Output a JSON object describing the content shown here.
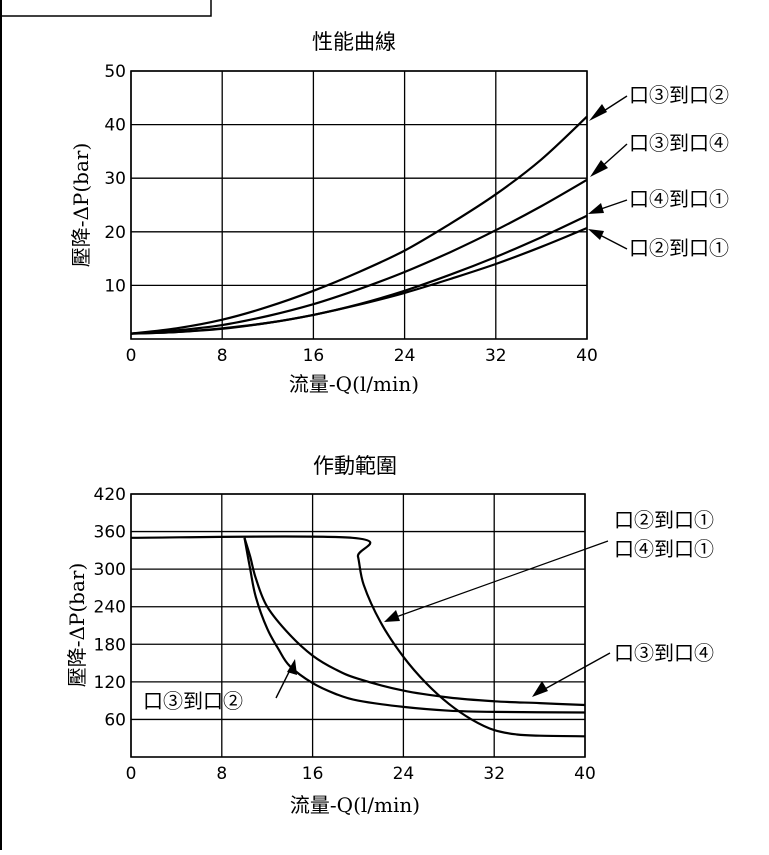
{
  "chart_data": [
    {
      "type": "line",
      "title": "性能曲線",
      "xlabel": "流量-Q(l/min)",
      "ylabel": "壓降-ΔP(bar)",
      "xlim": [
        0,
        40
      ],
      "ylim": [
        0,
        50
      ],
      "xticks": [
        0,
        8,
        16,
        24,
        32,
        40
      ],
      "yticks": [
        10,
        20,
        30,
        40,
        50
      ],
      "grid": true,
      "series": [
        {
          "name": "口③到口②",
          "x": [
            0,
            4,
            8,
            12,
            16,
            20,
            24,
            28,
            32,
            36,
            40
          ],
          "y": [
            1,
            2,
            3.6,
            6,
            9,
            12.5,
            16.5,
            21.5,
            27,
            33.5,
            41.5
          ]
        },
        {
          "name": "口③到口④",
          "x": [
            0,
            4,
            8,
            12,
            16,
            20,
            24,
            28,
            32,
            36,
            40
          ],
          "y": [
            1,
            1.6,
            2.6,
            4.3,
            6.5,
            9.3,
            12.5,
            16.2,
            20.3,
            24.8,
            29.7
          ]
        },
        {
          "name": "口④到口①",
          "x": [
            0,
            4,
            8,
            12,
            16,
            20,
            24,
            28,
            32,
            36,
            40
          ],
          "y": [
            1,
            1.3,
            2,
            3,
            4.5,
            6.5,
            9,
            12,
            15.3,
            19,
            23
          ]
        },
        {
          "name": "口②到口①",
          "x": [
            0,
            4,
            8,
            12,
            16,
            20,
            24,
            28,
            32,
            36,
            40
          ],
          "y": [
            1,
            1.3,
            1.9,
            3,
            4.5,
            6.4,
            8.6,
            11.2,
            14,
            17.2,
            20.7
          ]
        }
      ]
    },
    {
      "type": "line",
      "title": "作動範圍",
      "xlabel": "流量-Q(l/min)",
      "ylabel": "壓降-ΔP(bar)",
      "xlim": [
        0,
        40
      ],
      "ylim": [
        0,
        420
      ],
      "xticks": [
        0,
        8,
        16,
        24,
        32,
        40
      ],
      "yticks": [
        60,
        120,
        180,
        240,
        300,
        360,
        420
      ],
      "grid": true,
      "callouts": [
        "口②到口①",
        "口④到口①",
        "口③到口④",
        "口③到口②"
      ],
      "series": [
        {
          "name": "口②到口①",
          "x": [
            0,
            19.5,
            20,
            20.5,
            22,
            24,
            26,
            28,
            30,
            32,
            34,
            36,
            40
          ],
          "y": [
            350,
            350,
            320,
            275,
            215,
            160,
            118,
            85,
            60,
            43,
            36,
            34,
            33
          ]
        },
        {
          "name": "口③到口④",
          "x": [
            10,
            10.5,
            11,
            12,
            14,
            16,
            18,
            20,
            24,
            28,
            32,
            36,
            40
          ],
          "y": [
            350,
            320,
            285,
            240,
            195,
            162,
            140,
            125,
            106,
            95,
            89,
            86,
            83
          ]
        },
        {
          "name": "口③到口②",
          "x": [
            10,
            10.5,
            11,
            12,
            13,
            14,
            16,
            18,
            20,
            24,
            28,
            32,
            40
          ],
          "y": [
            350,
            300,
            255,
            205,
            172,
            145,
            118,
            101,
            90,
            80,
            74,
            72,
            71
          ]
        }
      ]
    }
  ]
}
